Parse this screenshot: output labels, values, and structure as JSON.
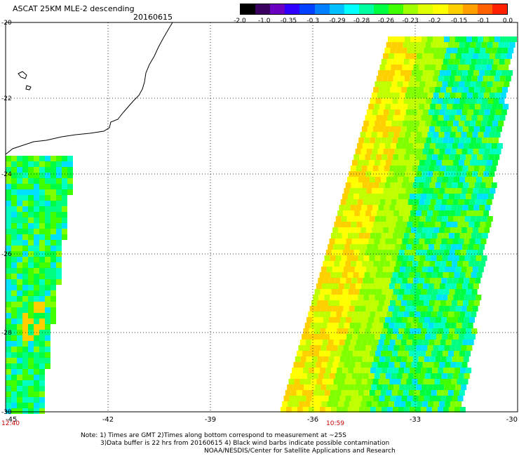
{
  "header": {
    "title": "ASCAT 25KM MLE-2 descending",
    "date": "20160615"
  },
  "colorbar": {
    "labels": [
      "-2.0",
      "-1.0",
      "-0.35",
      "-0.3",
      "-0.29",
      "-0.28",
      "-0.26",
      "-0.23",
      "-0.2",
      "-0.15",
      "-0.1",
      "0.0"
    ],
    "colors": [
      "#000000",
      "#3a0060",
      "#6a00c0",
      "#3000ff",
      "#0040ff",
      "#0080ff",
      "#00c0ff",
      "#00ffff",
      "#00ffa0",
      "#00ff40",
      "#40ff00",
      "#a0ff00",
      "#e0ff00",
      "#ffff00",
      "#ffd000",
      "#ffa000",
      "#ff6000",
      "#ff2000"
    ]
  },
  "axes": {
    "x_ticks": [
      "-45",
      "-42",
      "-39",
      "-36",
      "-33",
      "-30"
    ],
    "y_ticks": [
      "-20",
      "-22",
      "-24",
      "-26",
      "-28",
      "-30"
    ],
    "time_labels": [
      "12:40",
      "10:59"
    ]
  },
  "notes": {
    "line1": "Note: 1) Times are GMT 2)Times along bottom correspond to measurement at ~25S",
    "line2": "3)Data buffer is 22 hrs from 20160615 4) Black wind barbs indicate possible contamination",
    "line3": "NOAA/NESDIS/Center for Satellite Applications and Research"
  }
}
